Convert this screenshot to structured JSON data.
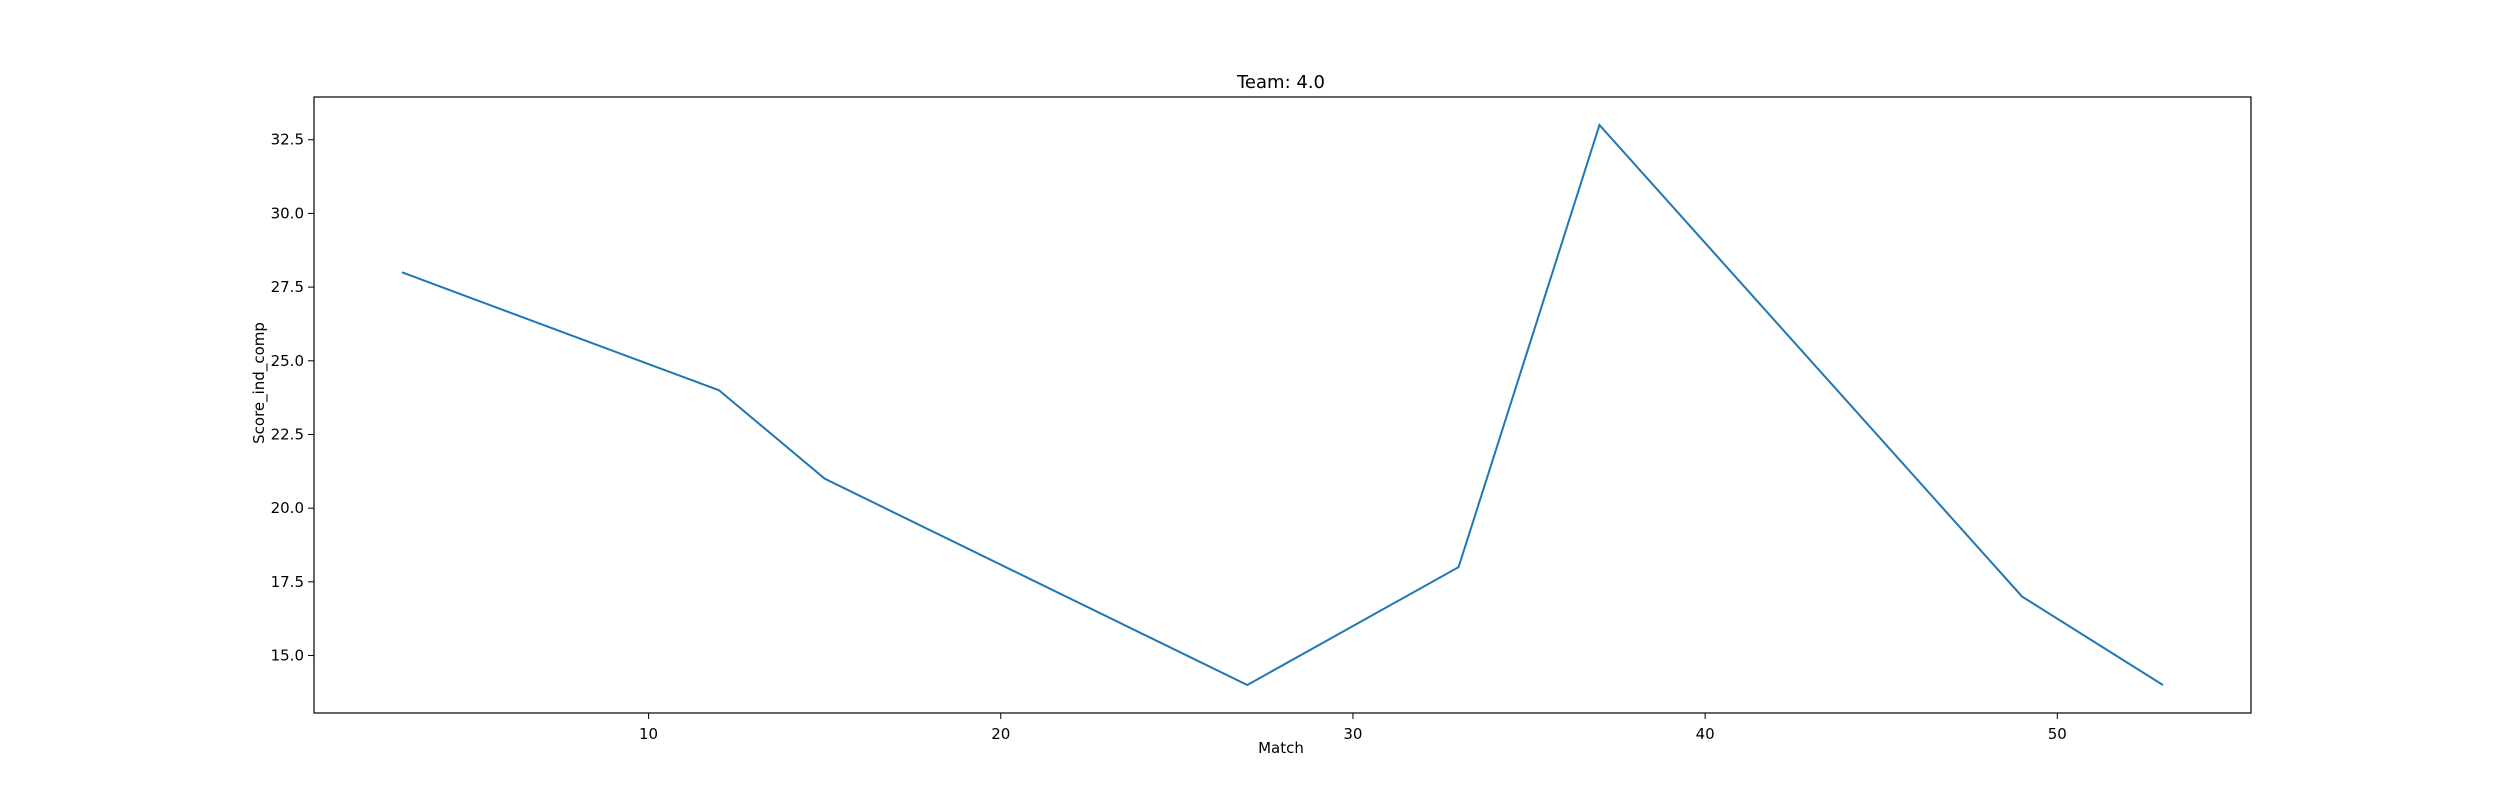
{
  "chart_data": {
    "type": "line",
    "title": "Team: 4.0",
    "xlabel": "Match",
    "ylabel": "Score_ind_comp",
    "xlim": [
      0.5,
      55.5
    ],
    "ylim": [
      13.05,
      33.95
    ],
    "xticks": [
      10,
      20,
      30,
      40,
      50
    ],
    "xtick_labels": [
      "10",
      "20",
      "30",
      "40",
      "50"
    ],
    "yticks": [
      15.0,
      17.5,
      20.0,
      22.5,
      25.0,
      27.5,
      30.0,
      32.5
    ],
    "ytick_labels": [
      "15.0",
      "17.5",
      "20.0",
      "22.5",
      "25.0",
      "27.5",
      "30.0",
      "32.5"
    ],
    "grid": false,
    "series": [
      {
        "x": [
          3,
          12,
          15,
          27,
          33,
          37,
          49,
          53
        ],
        "y": [
          28,
          24,
          21,
          14,
          18,
          33,
          17,
          14
        ],
        "color": "#1f77b4"
      }
    ]
  }
}
